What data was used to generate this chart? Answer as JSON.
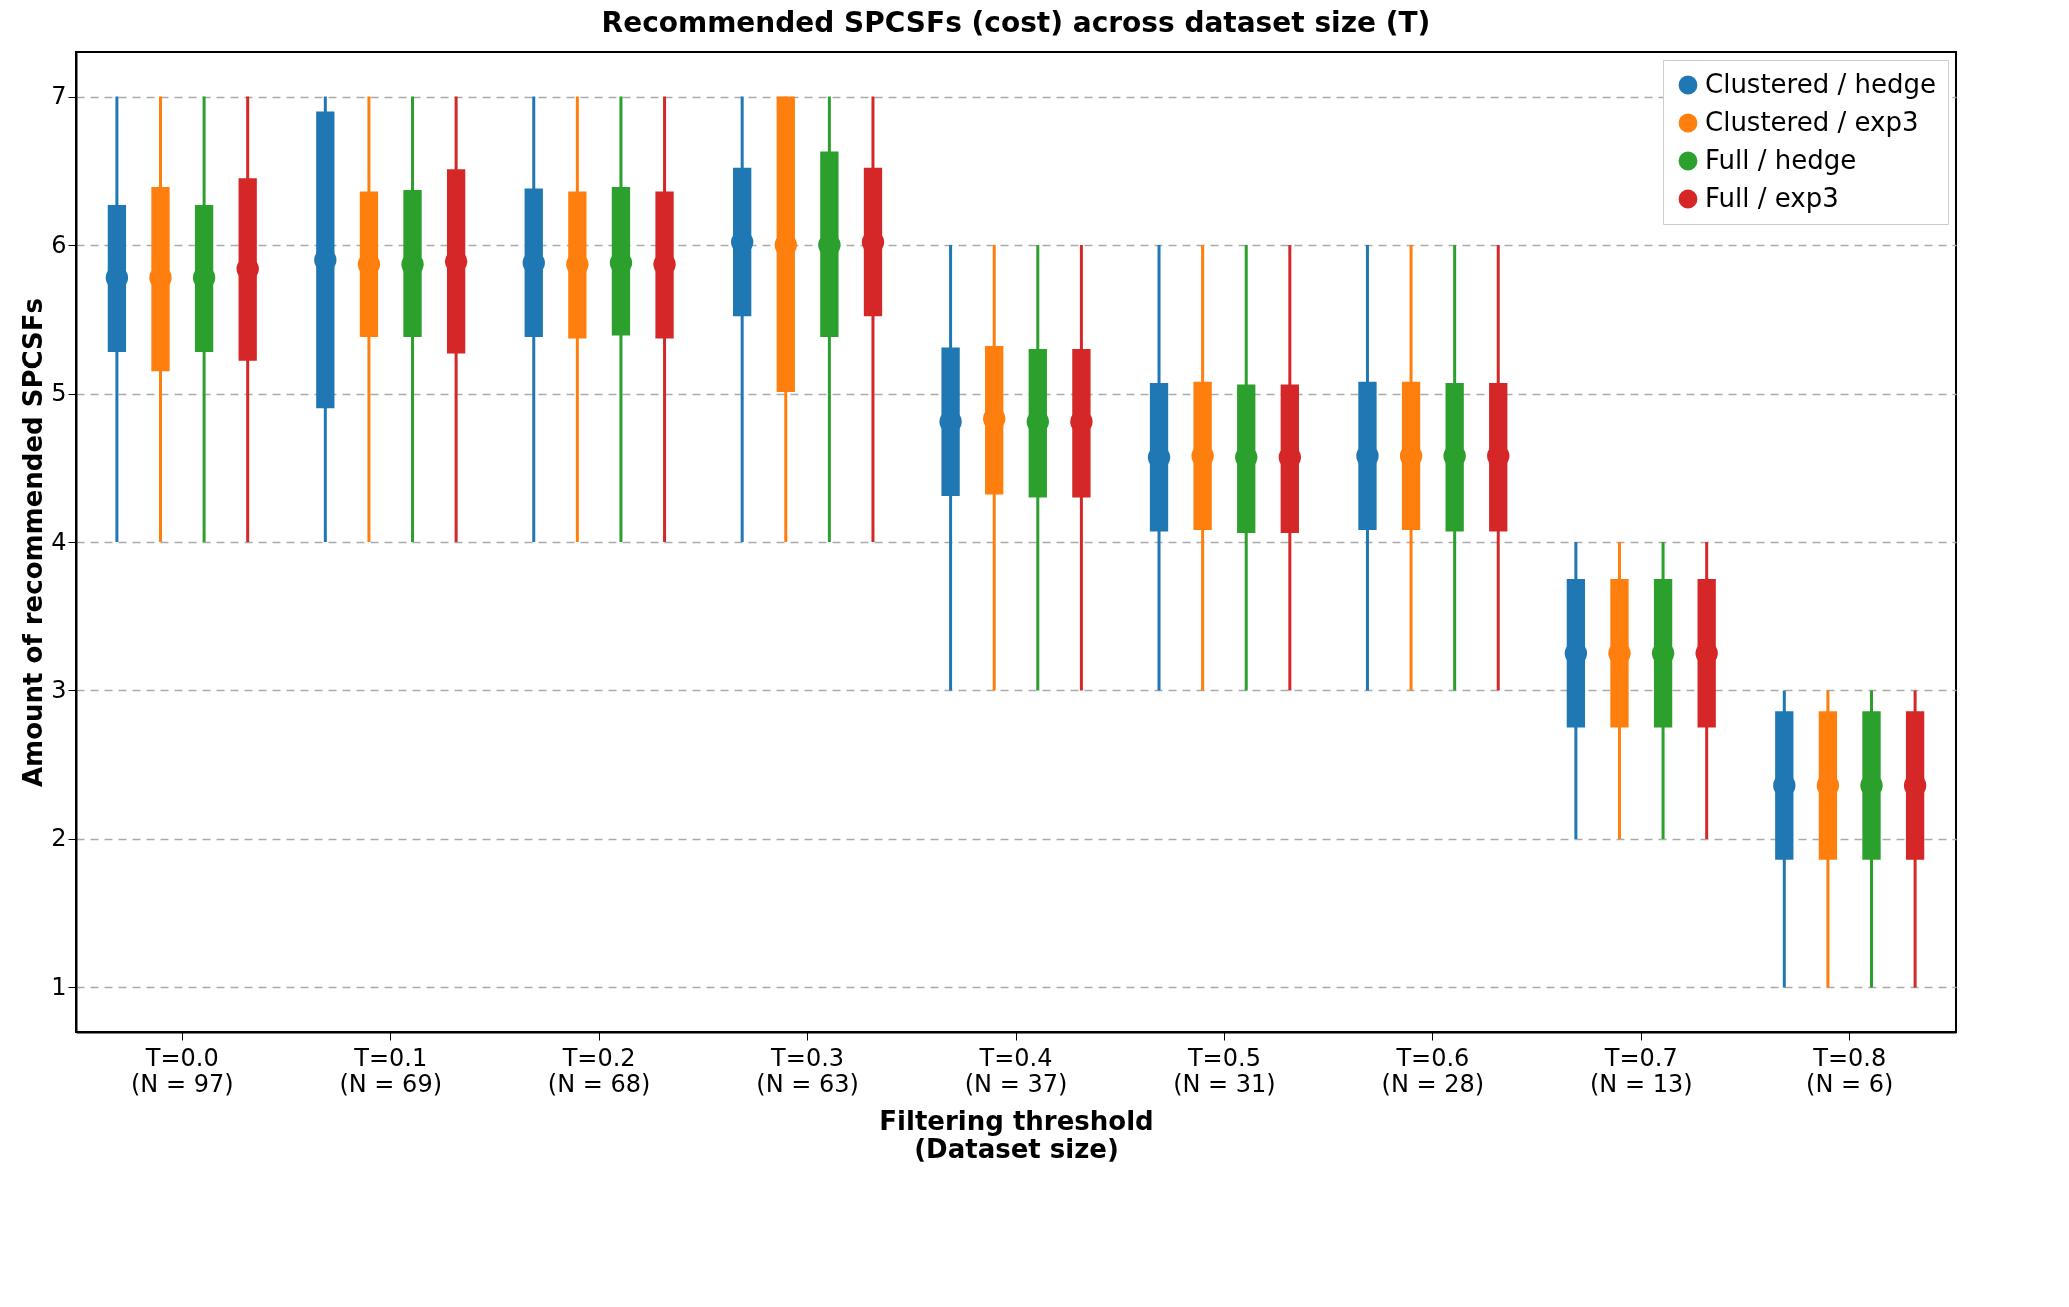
{
  "chart_data": {
    "type": "box",
    "title": "Recommended SPCSFs (cost) across dataset size (T)",
    "xlabel": "Filtering threshold\n(Dataset size)",
    "ylabel": "Amount of recommended SPCSFs",
    "categories": [
      "T=0.0\n(N = 97)",
      "T=0.1\n(N = 69)",
      "T=0.2\n(N = 68)",
      "T=0.3\n(N = 63)",
      "T=0.4\n(N = 37)",
      "T=0.5\n(N = 31)",
      "T=0.6\n(N = 28)",
      "T=0.7\n(N = 13)",
      "T=0.8\n(N = 6)"
    ],
    "ylim": [
      0.7,
      7.3
    ],
    "yticks": [
      1,
      2,
      3,
      4,
      5,
      6,
      7
    ],
    "grid": "y",
    "legend": "top right",
    "series": [
      {
        "name": "Clustered / hedge",
        "color": "#1f77b4",
        "boxes": [
          {
            "low": 4,
            "q1": 5.28,
            "median": 5.78,
            "q3": 6.27,
            "high": 7
          },
          {
            "low": 4,
            "q1": 4.9,
            "median": 5.9,
            "q3": 6.9,
            "high": 7
          },
          {
            "low": 4,
            "q1": 5.38,
            "median": 5.88,
            "q3": 6.38,
            "high": 7
          },
          {
            "low": 4,
            "q1": 5.52,
            "median": 6.02,
            "q3": 6.52,
            "high": 7
          },
          {
            "low": 3,
            "q1": 4.31,
            "median": 4.81,
            "q3": 5.31,
            "high": 6
          },
          {
            "low": 3,
            "q1": 4.07,
            "median": 4.57,
            "q3": 5.07,
            "high": 6
          },
          {
            "low": 3,
            "q1": 4.08,
            "median": 4.58,
            "q3": 5.08,
            "high": 6
          },
          {
            "low": 2,
            "q1": 2.75,
            "median": 3.25,
            "q3": 3.75,
            "high": 4
          },
          {
            "low": 1,
            "q1": 1.86,
            "median": 2.36,
            "q3": 2.86,
            "high": 3
          }
        ]
      },
      {
        "name": "Clustered / exp3",
        "color": "#ff7f0e",
        "boxes": [
          {
            "low": 4,
            "q1": 5.15,
            "median": 5.78,
            "q3": 6.39,
            "high": 7
          },
          {
            "low": 4,
            "q1": 5.38,
            "median": 5.87,
            "q3": 6.36,
            "high": 7
          },
          {
            "low": 4,
            "q1": 5.37,
            "median": 5.87,
            "q3": 6.36,
            "high": 7
          },
          {
            "low": 4,
            "q1": 5.01,
            "median": 6.0,
            "q3": 7,
            "high": 7
          },
          {
            "low": 3,
            "q1": 4.32,
            "median": 4.83,
            "q3": 5.32,
            "high": 6
          },
          {
            "low": 3,
            "q1": 4.08,
            "median": 4.58,
            "q3": 5.08,
            "high": 6
          },
          {
            "low": 3,
            "q1": 4.08,
            "median": 4.58,
            "q3": 5.08,
            "high": 6
          },
          {
            "low": 2,
            "q1": 2.75,
            "median": 3.25,
            "q3": 3.75,
            "high": 4
          },
          {
            "low": 1,
            "q1": 1.86,
            "median": 2.36,
            "q3": 2.86,
            "high": 3
          }
        ]
      },
      {
        "name": "Full / hedge",
        "color": "#2ca02c",
        "boxes": [
          {
            "low": 4,
            "q1": 5.28,
            "median": 5.78,
            "q3": 6.27,
            "high": 7
          },
          {
            "low": 4,
            "q1": 5.38,
            "median": 5.87,
            "q3": 6.37,
            "high": 7
          },
          {
            "low": 4,
            "q1": 5.39,
            "median": 5.88,
            "q3": 6.39,
            "high": 7
          },
          {
            "low": 4,
            "q1": 5.38,
            "median": 6.0,
            "q3": 6.63,
            "high": 7
          },
          {
            "low": 3,
            "q1": 4.3,
            "median": 4.81,
            "q3": 5.3,
            "high": 6
          },
          {
            "low": 3,
            "q1": 4.06,
            "median": 4.57,
            "q3": 5.06,
            "high": 6
          },
          {
            "low": 3,
            "q1": 4.07,
            "median": 4.58,
            "q3": 5.07,
            "high": 6
          },
          {
            "low": 2,
            "q1": 2.75,
            "median": 3.25,
            "q3": 3.75,
            "high": 4
          },
          {
            "low": 1,
            "q1": 1.86,
            "median": 2.36,
            "q3": 2.86,
            "high": 3
          }
        ]
      },
      {
        "name": "Full / exp3",
        "color": "#d62728",
        "boxes": [
          {
            "low": 4,
            "q1": 5.22,
            "median": 5.84,
            "q3": 6.45,
            "high": 7
          },
          {
            "low": 4,
            "q1": 5.27,
            "median": 5.89,
            "q3": 6.51,
            "high": 7
          },
          {
            "low": 4,
            "q1": 5.37,
            "median": 5.87,
            "q3": 6.36,
            "high": 7
          },
          {
            "low": 4,
            "q1": 5.52,
            "median": 6.02,
            "q3": 6.52,
            "high": 7
          },
          {
            "low": 3,
            "q1": 4.3,
            "median": 4.81,
            "q3": 5.3,
            "high": 6
          },
          {
            "low": 3,
            "q1": 4.06,
            "median": 4.57,
            "q3": 5.06,
            "high": 6
          },
          {
            "low": 3,
            "q1": 4.07,
            "median": 4.58,
            "q3": 5.07,
            "high": 6
          },
          {
            "low": 2,
            "q1": 2.75,
            "median": 3.25,
            "q3": 3.75,
            "high": 4
          },
          {
            "low": 1,
            "q1": 1.86,
            "median": 2.36,
            "q3": 2.86,
            "high": 3
          }
        ]
      }
    ]
  }
}
